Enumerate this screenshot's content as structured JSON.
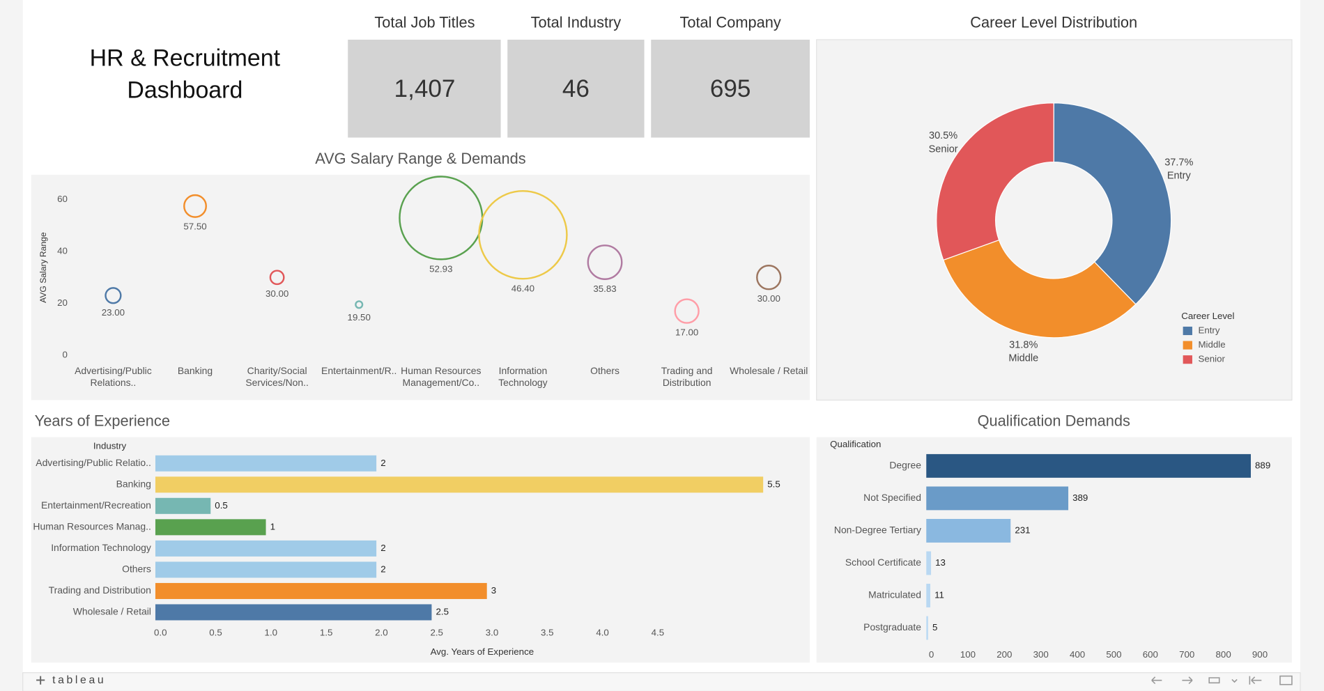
{
  "header": {
    "title": "HR & Recruitment Dashboard"
  },
  "kpis": [
    {
      "label": "Total Job Titles",
      "value": "1,407"
    },
    {
      "label": "Total Industry",
      "value": "46"
    },
    {
      "label": "Total Company",
      "value": "695"
    }
  ],
  "chart_data": [
    {
      "type": "bubble",
      "title": "AVG Salary Range & Demands",
      "y_label": "AVG Salary Range",
      "categories": [
        "Advertising/Public\nRelations..",
        "Banking",
        "Charity/Social\nServices/Non..",
        "Entertainment/R..",
        "Human Resources\nManagement/Co..",
        "Information\nTechnology",
        "Others",
        "Trading and\nDistribution",
        "Wholesale / Retail"
      ],
      "values": [
        23,
        57.5,
        30,
        19.5,
        52.93,
        46.4,
        35.83,
        17,
        30
      ],
      "value_labels": [
        "23.00",
        "57.50",
        "30.00",
        "19.50",
        "52.93",
        "46.40",
        "35.83",
        "17.00",
        "30.00"
      ],
      "sizes": [
        81,
        169,
        64,
        16,
        2401,
        2704,
        400,
        196,
        196
      ],
      "colors": [
        "#4e79a7",
        "#f28e2b",
        "#e15759",
        "#76b7b2",
        "#59a14f",
        "#edc948",
        "#b07aa1",
        "#ff9da7",
        "#9c755f"
      ],
      "ylim": [
        -3,
        67
      ],
      "yticks": [
        0,
        20,
        40,
        60
      ]
    },
    {
      "type": "donut",
      "title": "Career Level Distribution",
      "categories": [
        "Entry",
        "Middle",
        "Senior"
      ],
      "values": [
        37.7,
        31.8,
        30.5
      ],
      "value_labels": [
        "37.7%",
        "31.8%",
        "30.5%"
      ],
      "colors": [
        "#4e79a7",
        "#f28e2b",
        "#e15759"
      ],
      "legend_title": "Career Level",
      "legend": "bottom-right"
    },
    {
      "type": "barh",
      "title": "Years of Experience",
      "category_label": "Industry",
      "categories": [
        "Advertising/Public Relatio..",
        "Banking",
        "Entertainment/Recreation",
        "Human Resources Manag..",
        "Information Technology",
        "Others",
        "Trading and Distribution",
        "Wholesale / Retail"
      ],
      "values": [
        2,
        5.5,
        0.5,
        1,
        2,
        2,
        3,
        2.5
      ],
      "colors": [
        "#a0cbe8",
        "#f1ce63",
        "#76b7b2",
        "#59a14f",
        "#a0cbe8",
        "#a0cbe8",
        "#f28e2b",
        "#4e79a7"
      ],
      "x_label": "Avg. Years of Experience",
      "xlim": [
        0,
        5.7
      ],
      "xticks": [
        {
          "value": 0,
          "label": "0.0"
        },
        0.5,
        {
          "value": 1,
          "label": "1.0"
        },
        1.5,
        {
          "value": 2,
          "label": "2.0"
        },
        2.5,
        {
          "value": 3,
          "label": "3.0"
        },
        3.5,
        {
          "value": 4,
          "label": "4.0"
        },
        4.5
      ]
    },
    {
      "type": "barh",
      "title": "Qualification Demands",
      "category_label": "Qualification",
      "categories": [
        "Degree",
        "Not Specified",
        "Non-Degree Tertiary",
        "School Certificate",
        "Matriculated",
        "Postgraduate"
      ],
      "values": [
        889,
        389,
        231,
        13,
        11,
        5
      ],
      "colors": [
        "#2a5783",
        "#6a9bc8",
        "#8ab8e0",
        "#b9d8f2",
        "#b9d8f2",
        "#bcdaf3"
      ],
      "xlim": [
        0,
        990
      ],
      "xticks": [
        0,
        100,
        200,
        300,
        400,
        500,
        600,
        700,
        800,
        900
      ]
    }
  ],
  "footer": {
    "brand": "tableau"
  }
}
